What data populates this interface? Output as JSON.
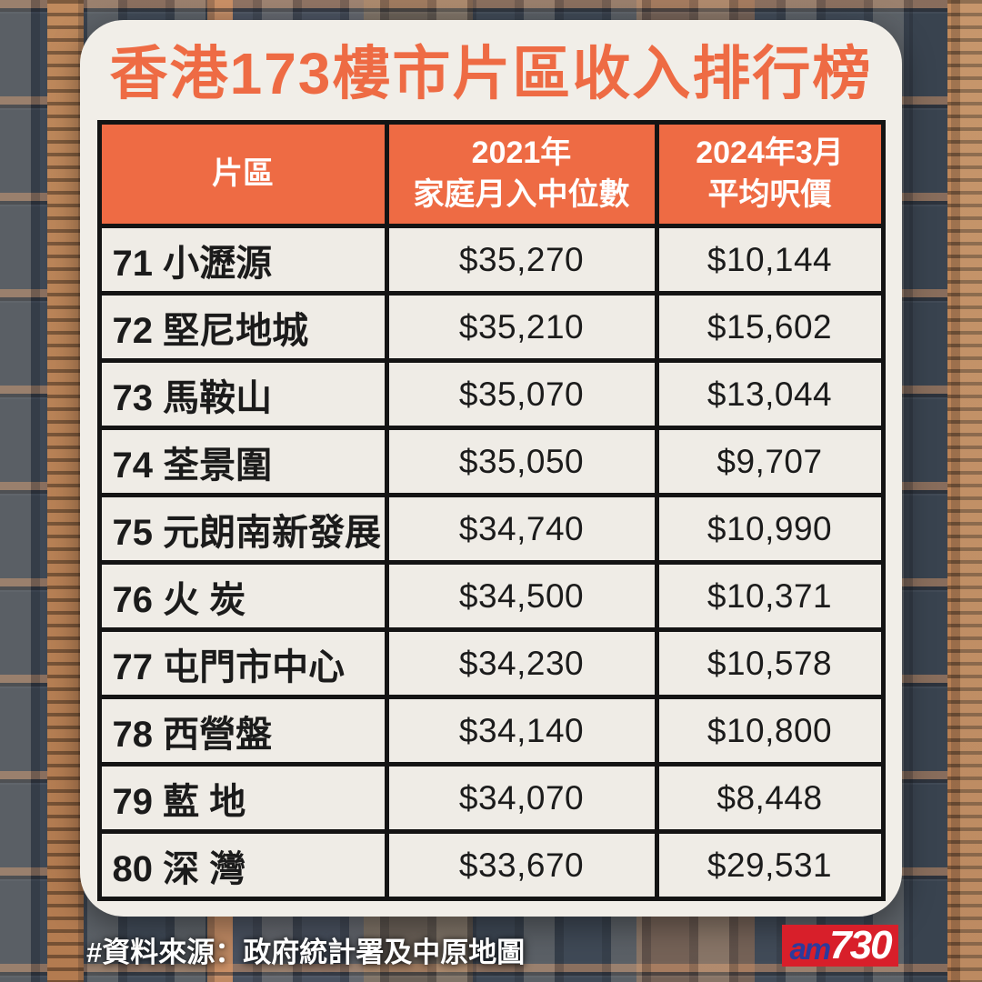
{
  "page": {
    "title": "香港173樓市片區收入排行榜",
    "source_note": "#資料來源：政府統計署及中原地圖",
    "logo": {
      "prefix": "am",
      "suffix": "730"
    }
  },
  "colors": {
    "accent_orange": "#ee6b44",
    "card_bg": "#f1eee8",
    "cell_bg": "#efece6",
    "border_black": "#141414",
    "logo_red": "#d81f2a",
    "logo_blue": "#2c3a9c"
  },
  "table": {
    "headers": {
      "district": "片區",
      "income_line1": "2021年",
      "income_line2": "家庭月入中位數",
      "price_line1": "2024年3月",
      "price_line2": "平均呎價"
    },
    "rows": [
      {
        "rank": "71",
        "district": "小瀝源",
        "income": "$35,270",
        "price": "$10,144"
      },
      {
        "rank": "72",
        "district": "堅尼地城",
        "income": "$35,210",
        "price": "$15,602"
      },
      {
        "rank": "73",
        "district": "馬鞍山",
        "income": "$35,070",
        "price": "$13,044"
      },
      {
        "rank": "74",
        "district": "荃景圍",
        "income": "$35,050",
        "price": "$9,707"
      },
      {
        "rank": "75",
        "district": "元朗南新發展",
        "income": "$34,740",
        "price": "$10,990"
      },
      {
        "rank": "76",
        "district": "火 炭",
        "income": "$34,500",
        "price": "$10,371"
      },
      {
        "rank": "77",
        "district": "屯門市中心",
        "income": "$34,230",
        "price": "$10,578"
      },
      {
        "rank": "78",
        "district": "西營盤",
        "income": "$34,140",
        "price": "$10,800"
      },
      {
        "rank": "79",
        "district": "藍 地",
        "income": "$34,070",
        "price": "$8,448"
      },
      {
        "rank": "80",
        "district": "深 灣",
        "income": "$33,670",
        "price": "$29,531"
      }
    ]
  },
  "chart_data": {
    "type": "table",
    "title": "香港173樓市片區收入排行榜",
    "columns": [
      "片區",
      "2021年家庭月入中位數",
      "2024年3月平均呎價"
    ],
    "rows": [
      [
        "71 小瀝源",
        35270,
        10144
      ],
      [
        "72 堅尼地城",
        35210,
        15602
      ],
      [
        "73 馬鞍山",
        35070,
        13044
      ],
      [
        "74 荃景圍",
        35050,
        9707
      ],
      [
        "75 元朗南新發展",
        34740,
        10990
      ],
      [
        "76 火炭",
        34500,
        10371
      ],
      [
        "77 屯門市中心",
        34230,
        10578
      ],
      [
        "78 西營盤",
        34140,
        10800
      ],
      [
        "79 藍地",
        34070,
        8448
      ],
      [
        "80 深灣",
        33670,
        29531
      ]
    ],
    "source": "#資料來源：政府統計署及中原地圖"
  }
}
